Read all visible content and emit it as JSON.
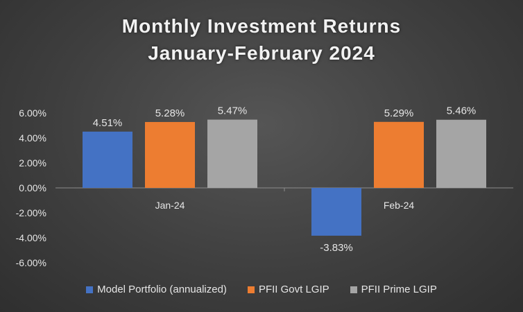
{
  "title_line1": "Monthly Investment Returns",
  "title_line2": "January-February 2024",
  "colors": {
    "Model Portfolio (annualized)": "#4472C4",
    "PFII Govt LGIP": "#ED7D31",
    "PFII Prime LGIP": "#A5A5A5"
  },
  "chart_data": {
    "type": "bar",
    "title": "Monthly Investment Returns January-February 2024",
    "categories": [
      "Jan-24",
      "Feb-24"
    ],
    "series": [
      {
        "name": "Model Portfolio (annualized)",
        "values": [
          4.51,
          -3.83
        ],
        "labels": [
          "4.51%",
          "-3.83%"
        ]
      },
      {
        "name": "PFII Govt LGIP",
        "values": [
          5.28,
          5.29
        ],
        "labels": [
          "5.28%",
          "5.29%"
        ]
      },
      {
        "name": "PFII Prime LGIP",
        "values": [
          5.47,
          5.46
        ],
        "labels": [
          "5.47%",
          "5.46%"
        ]
      }
    ],
    "ylim": [
      -6,
      6
    ],
    "yticks": [
      "-6.00%",
      "-4.00%",
      "-2.00%",
      "0.00%",
      "2.00%",
      "4.00%",
      "6.00%"
    ],
    "grid": false,
    "legend_position": "bottom"
  }
}
